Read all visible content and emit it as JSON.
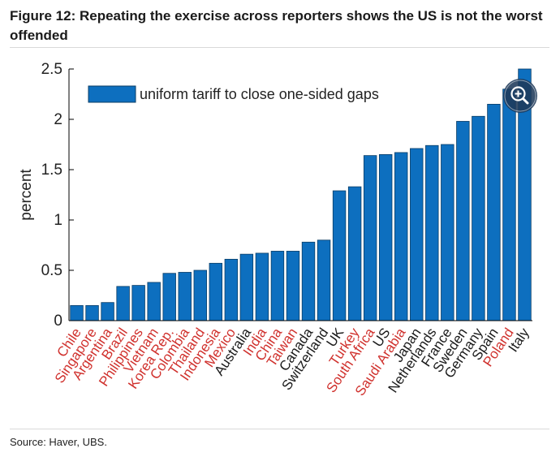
{
  "figure": {
    "title": "Figure 12: Repeating the exercise across reporters shows the US is not the worst offended",
    "source": "Source: Haver, UBS."
  },
  "colors": {
    "bar": "#0d6fbf",
    "bar_stroke": "#0a3d66",
    "highlight_label": "#d0312d",
    "normal_label": "#1a1a1a"
  },
  "zoom_button": {
    "icon": "zoom-in-icon"
  },
  "chart_data": {
    "type": "bar",
    "title": "",
    "xlabel": "",
    "ylabel": "percent",
    "ylim": [
      0,
      2.5
    ],
    "yticks": [
      0,
      0.5,
      1,
      1.5,
      2,
      2.5
    ],
    "ytick_labels": [
      "0",
      "0.5",
      "1",
      "1.5",
      "2",
      "2.5"
    ],
    "legend": {
      "label": "uniform tariff to close one-sided gaps",
      "position": "top-left"
    },
    "series": [
      {
        "name": "uniform tariff to close one-sided gaps",
        "values": [
          0.15,
          0.15,
          0.18,
          0.34,
          0.35,
          0.38,
          0.47,
          0.48,
          0.5,
          0.57,
          0.61,
          0.66,
          0.67,
          0.69,
          0.69,
          0.78,
          0.8,
          1.29,
          1.33,
          1.64,
          1.65,
          1.67,
          1.71,
          1.74,
          1.75,
          1.98,
          2.03,
          2.15,
          2.3,
          2.5
        ]
      }
    ],
    "categories": [
      "Chile",
      "Singapore",
      "Argentina",
      "Brazil",
      "Philippines",
      "Vietnam",
      "Korea Rep.",
      "Colombia",
      "Thailand",
      "Indonesia",
      "Mexico",
      "Australia",
      "India",
      "China",
      "Taiwan",
      "Canada",
      "Switzerland",
      "UK",
      "Turkey",
      "South Africa",
      "US",
      "Saudi Arabia",
      "Japan",
      "Netherlands",
      "France",
      "Sweden",
      "Germany",
      "Spain",
      "Poland",
      "Italy"
    ],
    "highlighted": [
      true,
      true,
      true,
      true,
      true,
      true,
      true,
      true,
      true,
      true,
      true,
      false,
      true,
      true,
      true,
      false,
      false,
      false,
      true,
      true,
      false,
      true,
      false,
      false,
      false,
      false,
      false,
      false,
      true,
      false
    ]
  }
}
